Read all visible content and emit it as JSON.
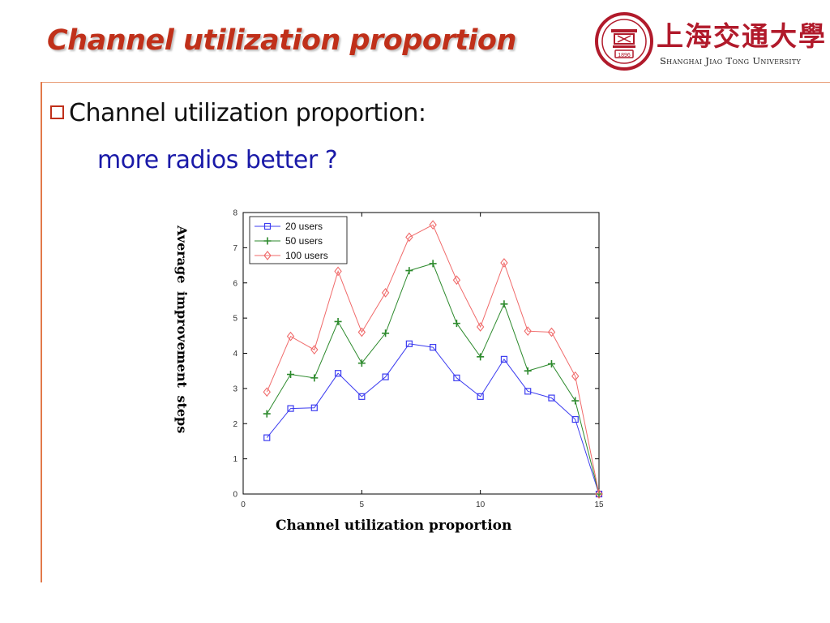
{
  "slide": {
    "title": "Channel utilization proportion",
    "bullet": "Channel utilization proportion:",
    "sub": "more radios better ?"
  },
  "logo": {
    "cn": "上海交通大學",
    "en": "Shanghai Jiao Tong University",
    "year": "1896"
  },
  "colors": {
    "title": "#c0301a",
    "sub": "#1a1aa8",
    "accent_line": "#e2794a"
  },
  "chart_data": {
    "type": "line",
    "title": "",
    "xlabel": "Channel utilization proportion",
    "ylabel": "Average  improvement steps",
    "xlim": [
      0,
      15
    ],
    "ylim": [
      0,
      8
    ],
    "xticks": [
      0,
      5,
      10,
      15
    ],
    "yticks": [
      0,
      1,
      2,
      3,
      4,
      5,
      6,
      7,
      8
    ],
    "grid": false,
    "legend_position": "top-left",
    "x": [
      1,
      2,
      3,
      4,
      5,
      6,
      7,
      8,
      9,
      10,
      11,
      12,
      13,
      14,
      15
    ],
    "series": [
      {
        "name": "20 users",
        "color": "#3c3cf0",
        "marker": "square",
        "values": [
          1.6,
          2.43,
          2.45,
          3.43,
          2.77,
          3.33,
          4.27,
          4.17,
          3.3,
          2.77,
          3.83,
          2.92,
          2.73,
          2.12,
          0
        ]
      },
      {
        "name": "50 users",
        "color": "#2d8a2d",
        "marker": "plus",
        "values": [
          2.28,
          3.4,
          3.3,
          4.9,
          3.72,
          4.57,
          6.35,
          6.55,
          4.85,
          3.9,
          5.4,
          3.5,
          3.7,
          2.65,
          0
        ]
      },
      {
        "name": "100 users",
        "color": "#f06a6a",
        "marker": "diamond",
        "values": [
          2.9,
          4.48,
          4.1,
          6.33,
          4.6,
          5.72,
          7.3,
          7.65,
          6.08,
          4.75,
          6.57,
          4.63,
          4.6,
          3.35,
          0
        ]
      }
    ]
  }
}
